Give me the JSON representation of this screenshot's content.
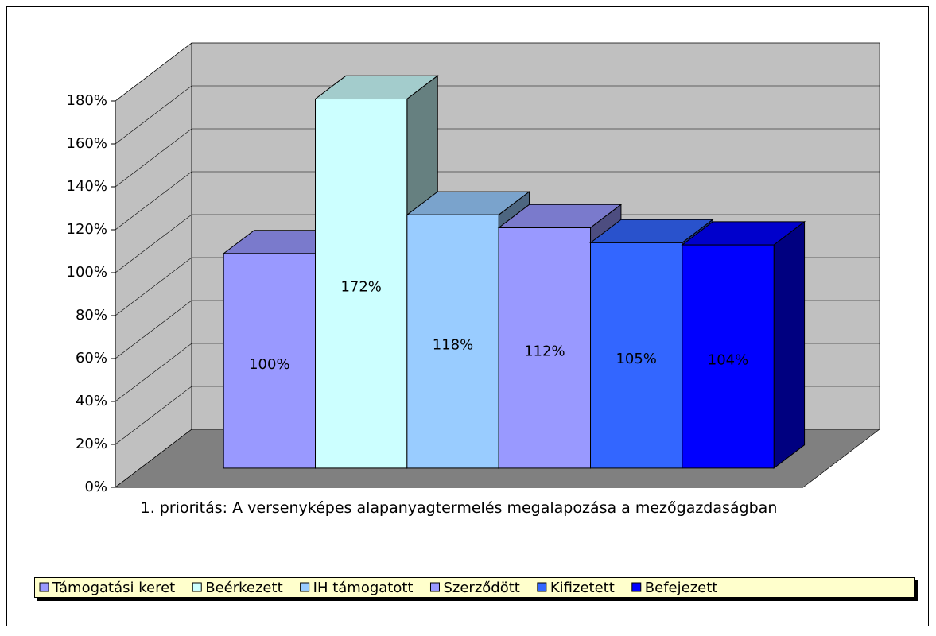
{
  "chart_data": {
    "type": "bar",
    "categories": [
      "1. prioritás: A versenyképes alapanyagtermelés megalapozása a mezőgazdaságban"
    ],
    "series": [
      {
        "name": "Támogatási keret",
        "color": "#9999ff",
        "values": [
          100
        ],
        "value_labels": [
          "100%"
        ]
      },
      {
        "name": "Beérkezett",
        "color": "#ccffff",
        "values": [
          172
        ],
        "value_labels": [
          "172%"
        ]
      },
      {
        "name": "IH támogatott",
        "color": "#99ccff",
        "values": [
          118
        ],
        "value_labels": [
          "118%"
        ]
      },
      {
        "name": "Szerződött",
        "color": "#9999ff",
        "values": [
          112
        ],
        "value_labels": [
          "112%"
        ]
      },
      {
        "name": "Kifizetett",
        "color": "#3366ff",
        "values": [
          105
        ],
        "value_labels": [
          "105%"
        ]
      },
      {
        "name": "Befejezett",
        "color": "#0000ff",
        "values": [
          104
        ],
        "value_labels": [
          "104%"
        ]
      }
    ],
    "ylim": [
      0,
      180
    ],
    "yticks": [
      {
        "value": 0,
        "label": "0%"
      },
      {
        "value": 20,
        "label": "20%"
      },
      {
        "value": 40,
        "label": "40%"
      },
      {
        "value": 60,
        "label": "60%"
      },
      {
        "value": 80,
        "label": "80%"
      },
      {
        "value": 100,
        "label": "100%"
      },
      {
        "value": 120,
        "label": "120%"
      },
      {
        "value": 140,
        "label": "140%"
      },
      {
        "value": 160,
        "label": "160%"
      },
      {
        "value": 180,
        "label": "180%"
      }
    ],
    "grid": true,
    "legend": "bottom"
  }
}
